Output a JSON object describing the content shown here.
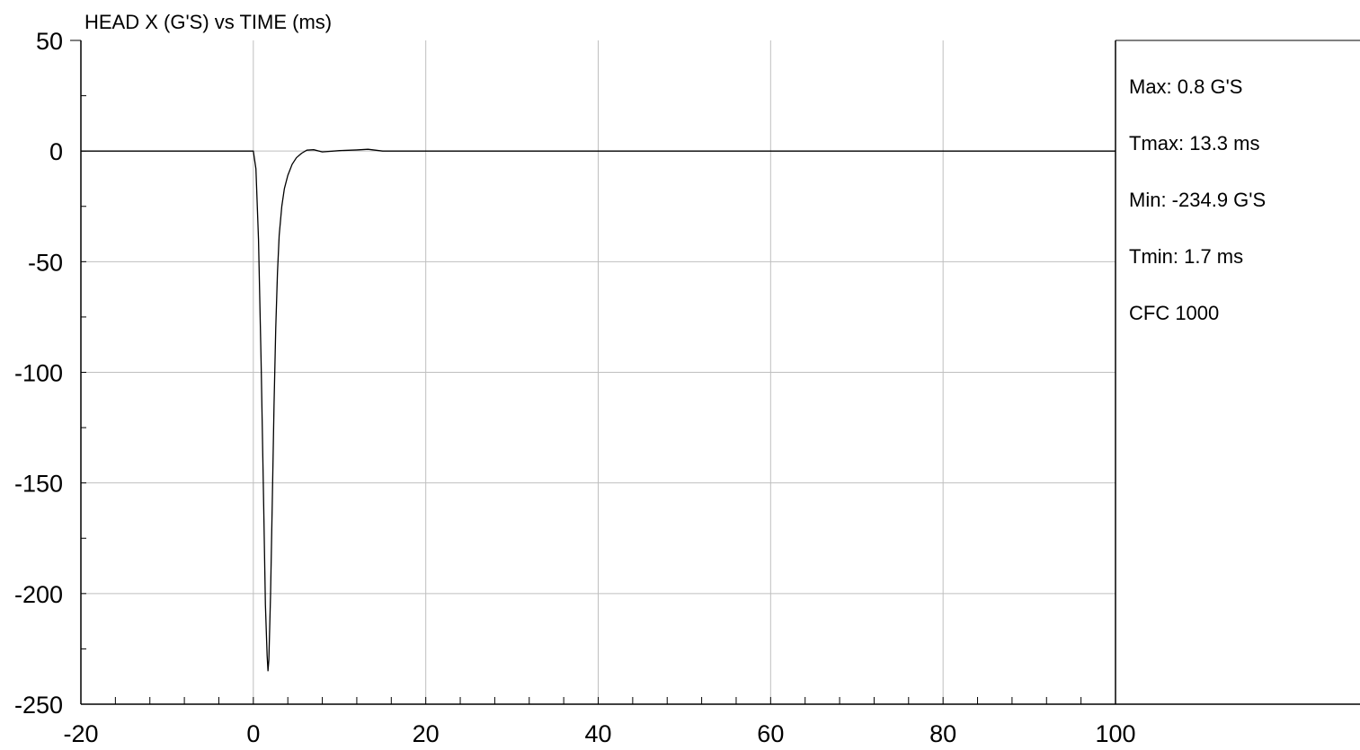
{
  "chart_data": {
    "type": "line",
    "title": "HEAD X (G'S) vs TIME (ms)",
    "xlabel": "",
    "ylabel": "",
    "xlim": [
      -20,
      100
    ],
    "ylim": [
      -250,
      50
    ],
    "x_ticks": [
      -20,
      0,
      20,
      40,
      60,
      80,
      100
    ],
    "y_ticks": [
      50,
      0,
      -50,
      -100,
      -150,
      -200,
      -250
    ],
    "x_tick_labels": [
      "-20",
      "0",
      "20",
      "40",
      "60",
      "80",
      "100"
    ],
    "y_tick_labels": [
      "50",
      "0",
      "-50",
      "-100",
      "-150",
      "-200",
      "-250"
    ],
    "x_minor_step": 4,
    "y_minor_step": 25,
    "grid": true,
    "series": [
      {
        "color": "#000000",
        "x": [
          -20,
          0,
          0.3,
          0.6,
          0.9,
          1.2,
          1.4,
          1.6,
          1.7,
          1.8,
          2.0,
          2.2,
          2.4,
          2.6,
          2.8,
          3.0,
          3.3,
          3.6,
          4.0,
          4.5,
          5.0,
          5.6,
          6.2,
          7.0,
          8.0,
          10.0,
          12.0,
          13.3,
          15.0,
          20.0,
          100
        ],
        "y": [
          0,
          0,
          -8,
          -40,
          -95,
          -160,
          -205,
          -228,
          -234.9,
          -230,
          -200,
          -158,
          -115,
          -80,
          -55,
          -38,
          -25,
          -17,
          -11,
          -6,
          -3,
          -1,
          0.4,
          0.6,
          -0.4,
          0.2,
          0.5,
          0.8,
          0,
          0,
          0
        ]
      }
    ],
    "stats": {
      "max": "Max: 0.8 G'S",
      "tmax": "Tmax: 13.3 ms",
      "min": "Min: -234.9 G'S",
      "tmin": "Tmin: 1.7 ms",
      "filter": "CFC 1000"
    },
    "colors": {
      "grid": "#bfbfbf",
      "axis": "#000000",
      "line": "#000000"
    }
  }
}
